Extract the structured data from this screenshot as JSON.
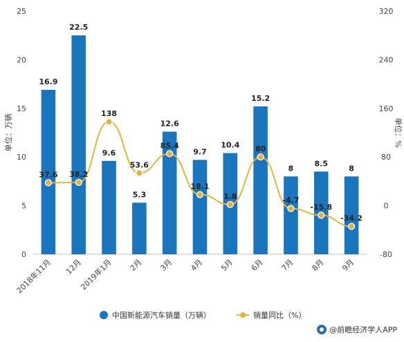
{
  "chart_data": {
    "type": "bar",
    "categories": [
      "2018年11月",
      "12月",
      "2019年1月",
      "2月",
      "3月",
      "4月",
      "5月",
      "6月",
      "7月",
      "8月",
      "9月"
    ],
    "series": [
      {
        "name": "中国新能源汽车销量（万辆）",
        "type": "bar",
        "axis": "left",
        "values": [
          16.9,
          22.5,
          9.6,
          5.3,
          12.6,
          9.7,
          10.4,
          15.2,
          8,
          8.5,
          8
        ]
      },
      {
        "name": "销量同比（%）",
        "type": "line",
        "axis": "right",
        "values": [
          37.6,
          38.2,
          138,
          53.6,
          85.4,
          18.1,
          1.8,
          80,
          -4.7,
          -15.8,
          -34.2
        ]
      }
    ],
    "ylabel": "单位：万辆",
    "ylabel_right": "单位：%",
    "ylim": [
      0,
      25
    ],
    "yticks": [
      0,
      5,
      10,
      15,
      20,
      25
    ],
    "ylim_right": [
      -80,
      320
    ],
    "yticks_right": [
      -80,
      0,
      80,
      160,
      240,
      320
    ],
    "grid": false,
    "legend_position": "bottom",
    "colors": {
      "bar": "#1a75bc",
      "line": "#e6b33a",
      "marker_fill": "#e6b33a"
    }
  },
  "source_label": "@前瞻经济学人APP"
}
